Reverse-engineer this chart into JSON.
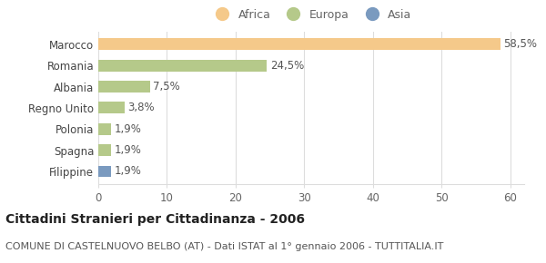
{
  "categories": [
    "Marocco",
    "Romania",
    "Albania",
    "Regno Unito",
    "Polonia",
    "Spagna",
    "Filippine"
  ],
  "values": [
    58.5,
    24.5,
    7.5,
    3.8,
    1.9,
    1.9,
    1.9
  ],
  "labels": [
    "58,5%",
    "24,5%",
    "7,5%",
    "3,8%",
    "1,9%",
    "1,9%",
    "1,9%"
  ],
  "bar_colors": [
    "#f5c98a",
    "#b5c98a",
    "#b5c98a",
    "#b5c98a",
    "#b5c98a",
    "#b5c98a",
    "#7a9abf"
  ],
  "legend_items": [
    {
      "label": "Africa",
      "color": "#f5c98a"
    },
    {
      "label": "Europa",
      "color": "#b5c98a"
    },
    {
      "label": "Asia",
      "color": "#7a9abf"
    }
  ],
  "xlim": [
    0,
    62
  ],
  "xticks": [
    0,
    10,
    20,
    30,
    40,
    50,
    60
  ],
  "title_bold": "Cittadini Stranieri per Cittadinanza - 2006",
  "subtitle": "COMUNE DI CASTELNUOVO BELBO (AT) - Dati ISTAT al 1° gennaio 2006 - TUTTITALIA.IT",
  "background_color": "#ffffff",
  "grid_color": "#dddddd",
  "bar_height": 0.55,
  "label_fontsize": 8.5,
  "tick_fontsize": 8.5,
  "title_fontsize": 10,
  "subtitle_fontsize": 8
}
